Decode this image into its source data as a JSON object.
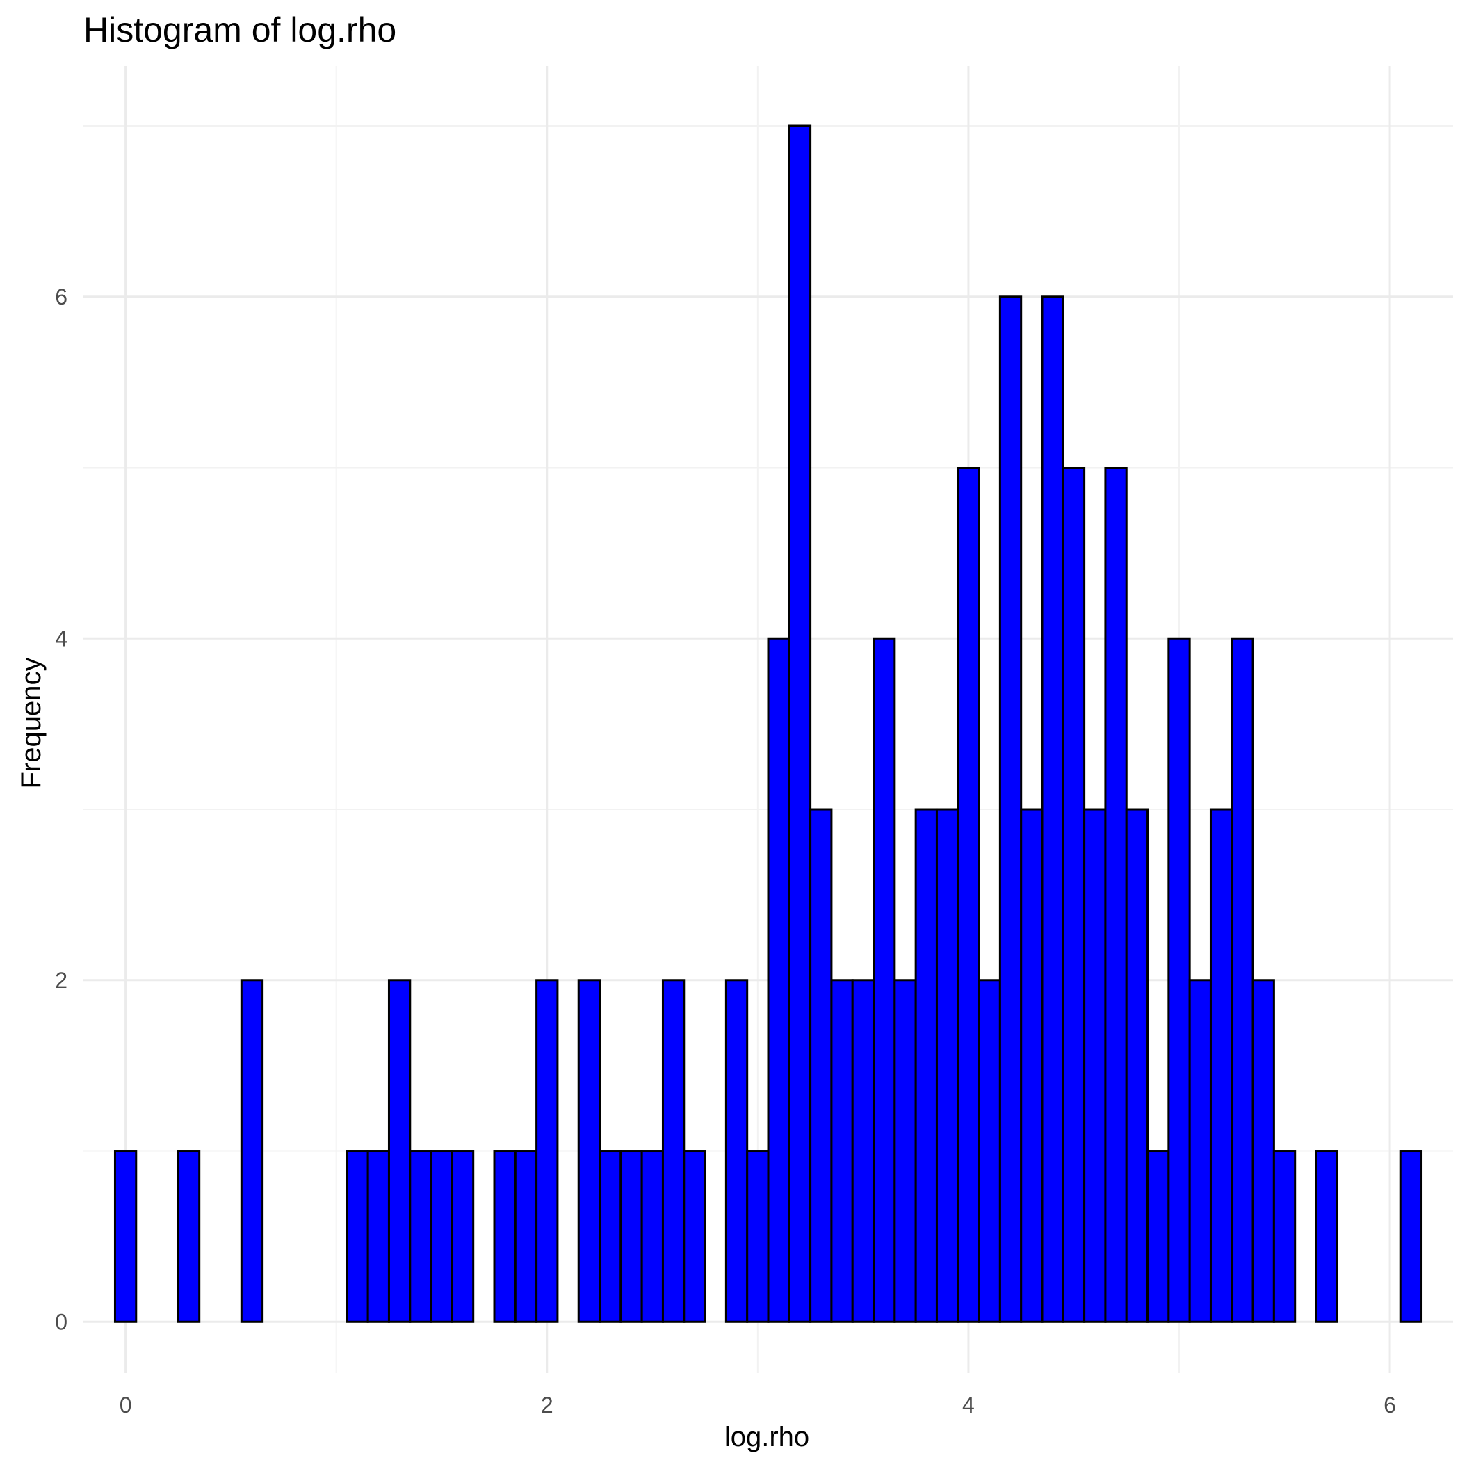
{
  "chart_data": {
    "type": "bar",
    "title": "Histogram of log.rho",
    "xlabel": "log.rho",
    "ylabel": "Frequency",
    "xlim": [
      -0.2,
      6.3
    ],
    "ylim": [
      -0.3,
      7.35
    ],
    "x_ticks": [
      0,
      2,
      4,
      6
    ],
    "y_ticks": [
      0,
      2,
      4,
      6
    ],
    "x_tick_labels": [
      "0",
      "2",
      "4",
      "6"
    ],
    "y_tick_labels": [
      "0",
      "2",
      "4",
      "6"
    ],
    "grid": true,
    "bin_start": -0.05,
    "bin_width": 0.1,
    "counts": [
      1,
      0,
      0,
      1,
      0,
      0,
      2,
      0,
      0,
      0,
      0,
      1,
      1,
      2,
      1,
      1,
      1,
      0,
      1,
      1,
      2,
      0,
      2,
      1,
      1,
      1,
      2,
      1,
      0,
      2,
      1,
      4,
      7,
      3,
      2,
      2,
      4,
      2,
      3,
      3,
      5,
      2,
      6,
      3,
      6,
      5,
      3,
      5,
      3,
      1,
      4,
      2,
      3,
      4,
      2,
      1,
      0,
      1,
      0,
      0,
      0,
      1
    ],
    "colors": {
      "fill": "#0000ff",
      "outline": "#000000"
    }
  }
}
